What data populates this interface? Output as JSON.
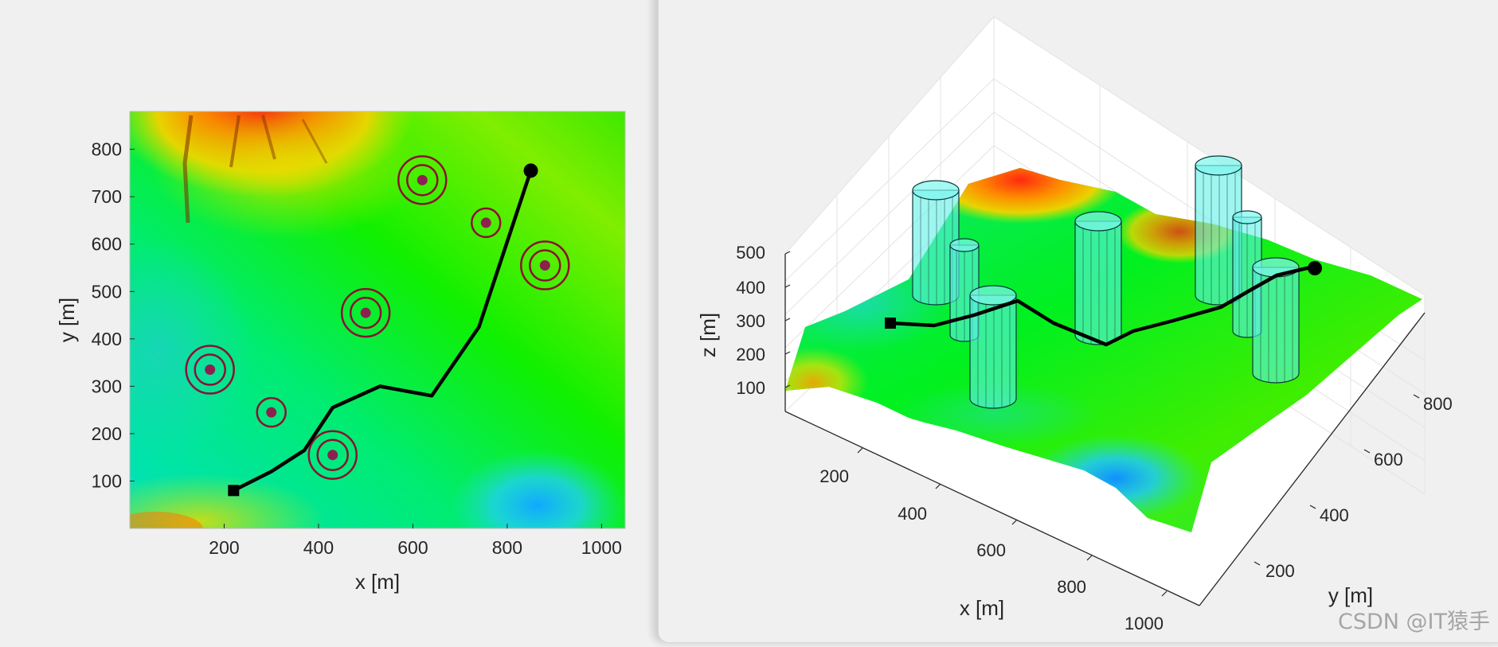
{
  "colors": {
    "terrain": [
      "#1ec8ff",
      "#00e68c",
      "#00f500",
      "#a8ee00",
      "#f0d600",
      "#ff8000",
      "#e01010"
    ],
    "threat_ring": "#8a1230",
    "threat_center": "#8e2050",
    "path": "#000000",
    "cylinder_fill": "#5ff0e6",
    "cylinder_edge": "#0a3a3a"
  },
  "chart_data": [
    {
      "type": "scatter",
      "view": "2D top view",
      "xlabel": "x [m]",
      "ylabel": "y [m]",
      "xlim": [
        0,
        1050
      ],
      "ylim": [
        0,
        880
      ],
      "xticks": [
        200,
        400,
        600,
        800,
        1000
      ],
      "yticks": [
        100,
        200,
        300,
        400,
        500,
        600,
        700,
        800
      ],
      "grid": false,
      "legend": "none",
      "threats": [
        {
          "x": 620,
          "y": 735,
          "rings": 2
        },
        {
          "x": 755,
          "y": 645,
          "rings": 1
        },
        {
          "x": 880,
          "y": 555,
          "rings": 2
        },
        {
          "x": 500,
          "y": 455,
          "rings": 2
        },
        {
          "x": 170,
          "y": 335,
          "rings": 2
        },
        {
          "x": 300,
          "y": 245,
          "rings": 1
        },
        {
          "x": 430,
          "y": 155,
          "rings": 2
        }
      ],
      "path": {
        "start": {
          "x": 220,
          "y": 80
        },
        "end": {
          "x": 850,
          "y": 755
        },
        "points": [
          [
            220,
            80
          ],
          [
            300,
            120
          ],
          [
            370,
            165
          ],
          [
            430,
            255
          ],
          [
            530,
            300
          ],
          [
            640,
            280
          ],
          [
            740,
            425
          ],
          [
            850,
            755
          ]
        ]
      }
    },
    {
      "type": "scatter",
      "view": "3D perspective",
      "xlabel": "x [m]",
      "ylabel": "y [m]",
      "zlabel": "z [m]",
      "xticks": [
        200,
        400,
        600,
        800,
        1000
      ],
      "yticks": [
        200,
        400,
        600,
        800
      ],
      "zticks": [
        100,
        200,
        300,
        400,
        500
      ],
      "grid": true,
      "legend": "none",
      "path": {
        "start": {
          "x": 220,
          "y": 80
        },
        "end": {
          "x": 850,
          "y": 755
        }
      }
    }
  ],
  "watermark": "CSDN @IT猿手"
}
